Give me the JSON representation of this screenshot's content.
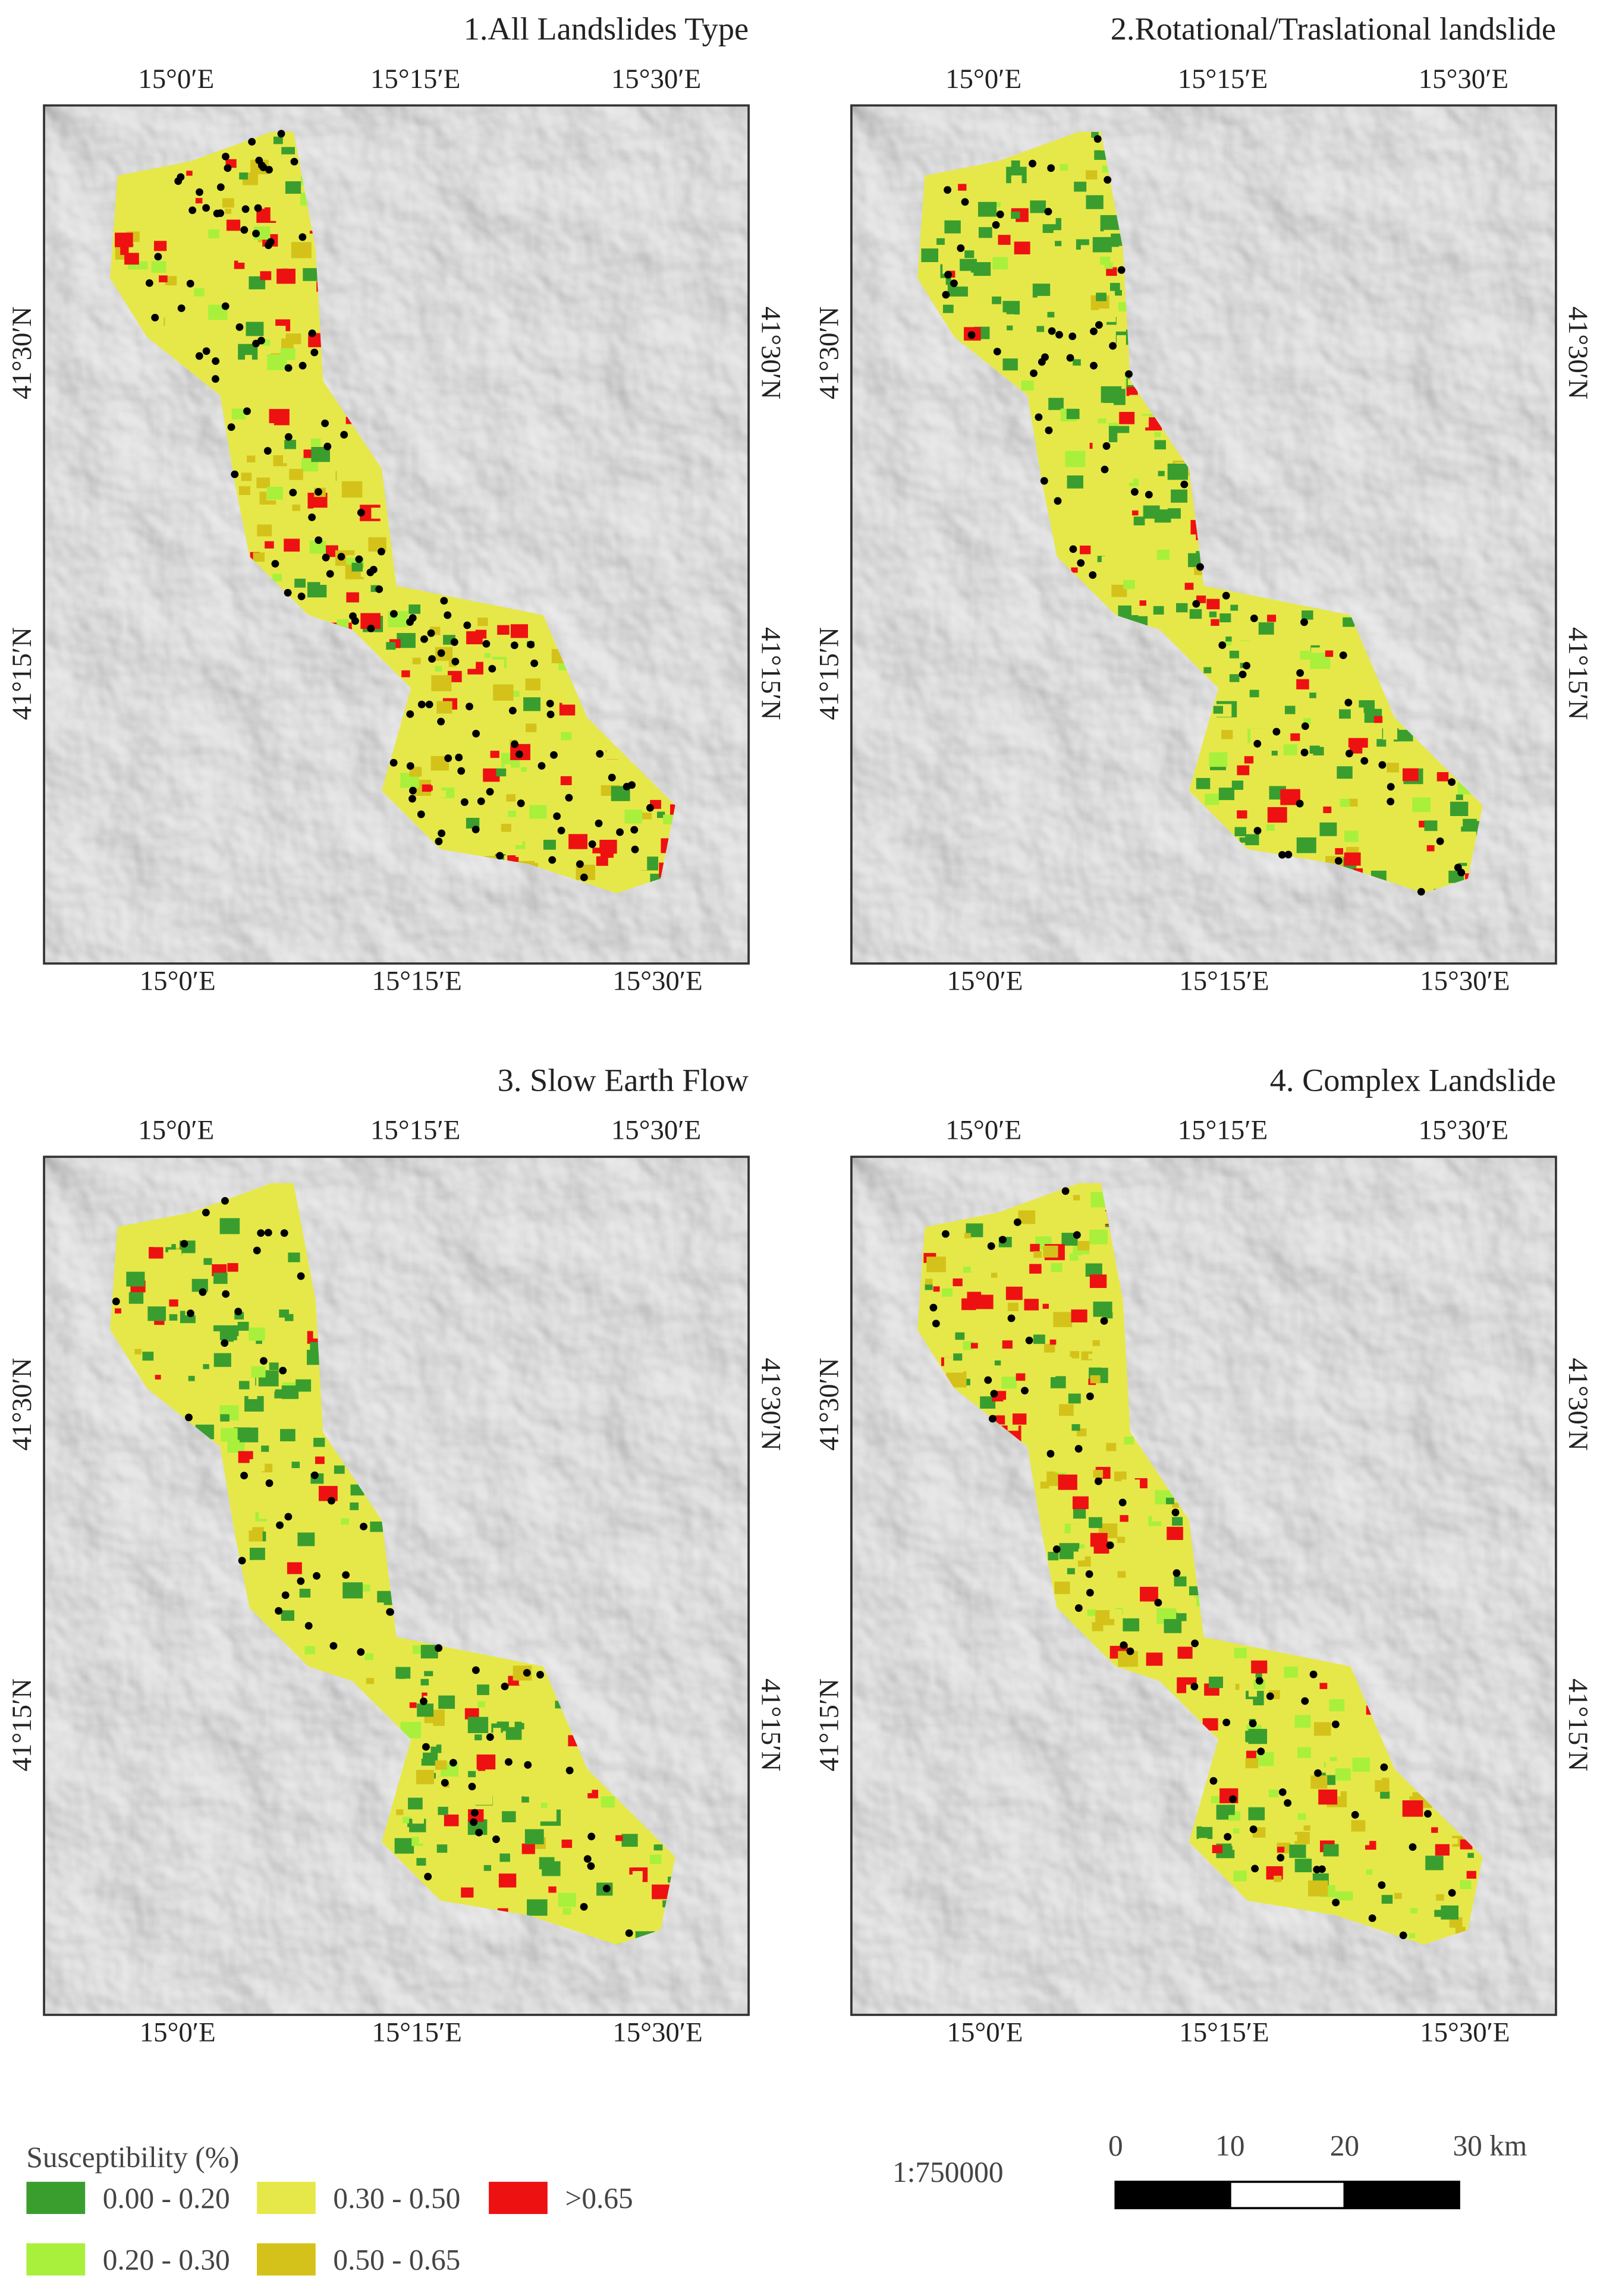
{
  "panels": [
    {
      "title": "1.All Landslides Type"
    },
    {
      "title": "2.Rotational/Traslational landslide"
    },
    {
      "title": "3. Slow Earth Flow"
    },
    {
      "title": "4. Complex Landslide"
    }
  ],
  "map_grid": {
    "top_labels": [
      "15°0′E",
      "15°15′E",
      "15°30′E"
    ],
    "bottom_labels": [
      "15°0′E",
      "15°15′E",
      "15°30′E"
    ],
    "lat_labels": [
      "41°30′N",
      "41°15′N"
    ]
  },
  "legend": {
    "title": "Susceptibility (%)",
    "items": [
      {
        "label": "0.00 - 0.20",
        "color": "#3a9e2e"
      },
      {
        "label": "0.20 - 0.30",
        "color": "#a8f03c"
      },
      {
        "label": "0.30 - 0.50",
        "color": "#e6e84a"
      },
      {
        "label": "0.50 - 0.65",
        "color": "#d4c21a"
      },
      {
        "label": ">0.65",
        "color": "#ee1111"
      }
    ]
  },
  "scale": {
    "ratio": "1:750000",
    "bar_labels": [
      "0",
      "10",
      "20",
      "30 km"
    ]
  }
}
